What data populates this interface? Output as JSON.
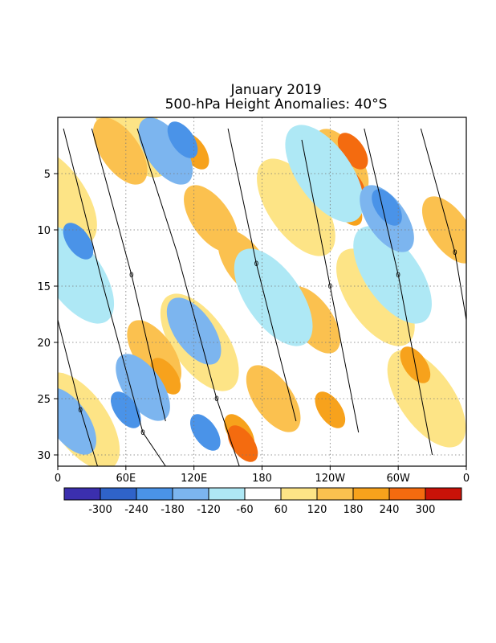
{
  "chart_data": {
    "type": "heatmap",
    "title": "January 2019",
    "subtitle": "500-hPa Height Anomalies: 40°S",
    "xlabel": "",
    "ylabel": "",
    "x_ticks": [
      "0",
      "60E",
      "120E",
      "180",
      "120W",
      "60W",
      "0"
    ],
    "x_range_deg_east": [
      0,
      360
    ],
    "y_ticks": [
      "5",
      "10",
      "15",
      "20",
      "25",
      "30"
    ],
    "y_range_day": [
      1,
      31
    ],
    "y_reversed": true,
    "grid": true,
    "colorbar": {
      "labels": [
        "-300",
        "-240",
        "-180",
        "-120",
        "-60",
        "60",
        "120",
        "180",
        "240",
        "300"
      ],
      "bin_colors": [
        "#3b2fae",
        "#2f63c9",
        "#4a93e8",
        "#7cb5ef",
        "#aee8f5",
        "#ffffff",
        "#fde486",
        "#fbc14f",
        "#f7a21c",
        "#f46b0f",
        "#c91208"
      ]
    },
    "contour_label": "0",
    "bands": [
      {
        "level": 60,
        "centers": [
          [
            0,
            7
          ],
          [
            65,
            1
          ],
          [
            125,
            20
          ],
          [
            210,
            8
          ],
          [
            280,
            16
          ],
          [
            325,
            25
          ],
          [
            20,
            27
          ]
        ]
      },
      {
        "level": 120,
        "centers": [
          [
            55,
            3
          ],
          [
            85,
            21
          ],
          [
            135,
            9
          ],
          [
            165,
            13
          ],
          [
            250,
            4
          ],
          [
            225,
            18
          ],
          [
            345,
            10
          ],
          [
            190,
            25
          ]
        ]
      },
      {
        "level": 180,
        "centers": [
          [
            120,
            3
          ],
          [
            95,
            23
          ],
          [
            160,
            28
          ],
          [
            240,
            26
          ],
          [
            255,
            8
          ],
          [
            315,
            22
          ]
        ]
      },
      {
        "level": 240,
        "centers": [
          [
            260,
            3
          ],
          [
            163,
            29
          ],
          [
            258,
            6
          ]
        ]
      },
      {
        "level": -60,
        "centers": [
          [
            15,
            14
          ],
          [
            235,
            5
          ],
          [
            295,
            14
          ],
          [
            190,
            16
          ]
        ]
      },
      {
        "level": -120,
        "centers": [
          [
            95,
            3
          ],
          [
            10,
            27
          ],
          [
            75,
            24
          ],
          [
            120,
            19
          ],
          [
            290,
            9
          ]
        ]
      },
      {
        "level": -180,
        "centers": [
          [
            110,
            2
          ],
          [
            18,
            11
          ],
          [
            130,
            28
          ],
          [
            290,
            8
          ],
          [
            60,
            26
          ]
        ]
      }
    ]
  }
}
